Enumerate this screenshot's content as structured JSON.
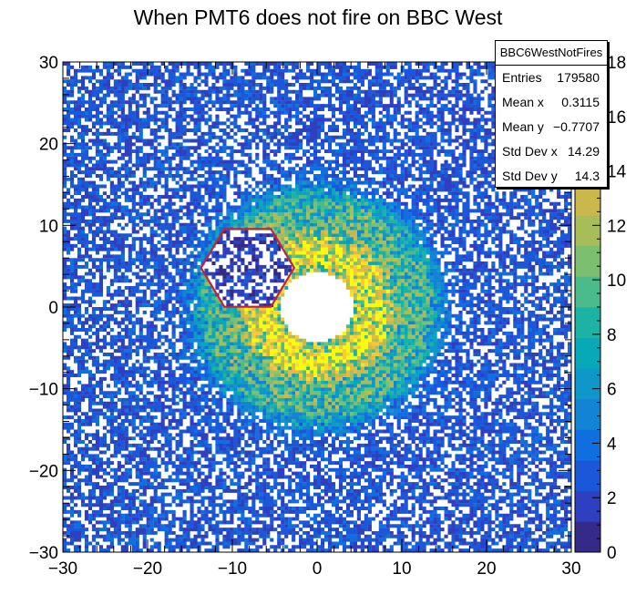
{
  "chart_data": {
    "type": "heatmap",
    "title": "When PMT6 does not fire on BBC West",
    "xlim": [
      -30,
      30
    ],
    "ylim": [
      -30,
      30
    ],
    "x_ticks": [
      "−30",
      "−20",
      "−10",
      "0",
      "10",
      "20",
      "30"
    ],
    "y_ticks": [
      "−30",
      "−20",
      "−10",
      "0",
      "10",
      "20",
      "30"
    ],
    "z_ticks": [
      "0",
      "2",
      "4",
      "6",
      "8",
      "10",
      "12",
      "14",
      "16",
      "18"
    ],
    "zlim": [
      0,
      18
    ],
    "palette": [
      "#352a87",
      "#2e3fc0",
      "#1a58d9",
      "#0f6ee0",
      "#1383d4",
      "#0e97c8",
      "#07a8b8",
      "#1db3a4",
      "#4cbb8b",
      "#7bbf6f",
      "#a7bd58",
      "#cbb84a",
      "#e9b83f",
      "#f9c83a",
      "#f8dd2e",
      "#f9fb0e"
    ],
    "distribution": {
      "rings": [
        {
          "radius": 6.5,
          "sigma": 2.4,
          "peak": 13
        },
        {
          "radius": 12.5,
          "sigma": 1.8,
          "peak": 5.5
        }
      ],
      "background_level": 2.6,
      "inner_hole_radius": 4.3,
      "dead_region_center": [
        -8.2,
        4.8
      ],
      "dead_region_radius": 5.5
    },
    "annotations": {
      "hexagon": {
        "center": [
          -8.2,
          4.8
        ],
        "radius": 5.5,
        "color": "#c8203a"
      }
    },
    "stats": {
      "name": "BBC6WestNotFires",
      "rows": [
        {
          "label": "Entries",
          "value": "179580"
        },
        {
          "label": "Mean x",
          "value": "0.3115"
        },
        {
          "label": "Mean y",
          "value": "−0.7707"
        },
        {
          "label": "Std Dev x",
          "value": "14.29"
        },
        {
          "label": "Std Dev y",
          "value": "14.3"
        }
      ]
    }
  }
}
